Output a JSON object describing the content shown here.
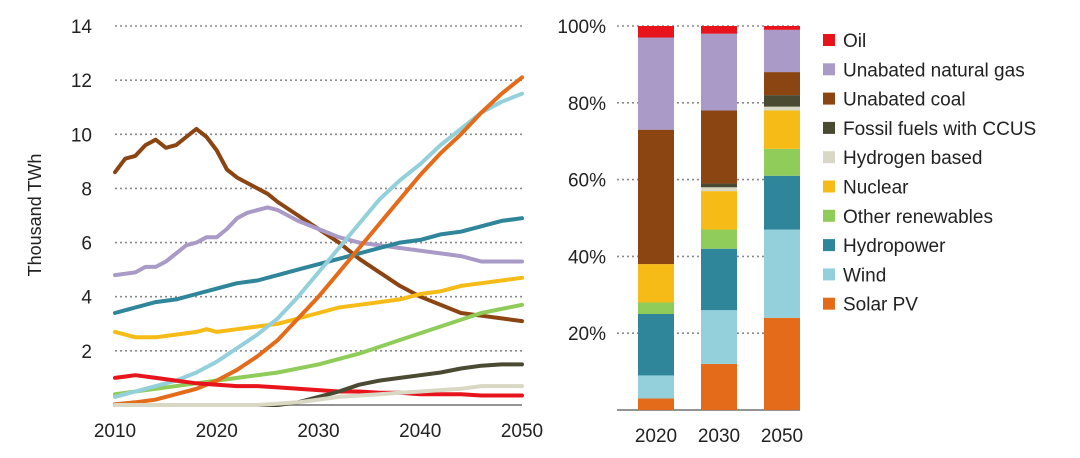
{
  "colors": {
    "oil": "#e8141c",
    "gas": "#a99ac7",
    "coal": "#8b4513",
    "ccus": "#4a4a32",
    "hydrogen": "#d9d8c4",
    "nuclear": "#f7bb17",
    "other": "#8fcc5a",
    "hydro": "#2f8599",
    "wind": "#93d0dc",
    "solar": "#e46b1a"
  },
  "chart_data": [
    {
      "type": "line",
      "ylabel": "Thousand TWh",
      "xlim": [
        2010,
        2050
      ],
      "ylim": [
        0,
        14
      ],
      "x_ticks": [
        "2010",
        "2020",
        "2030",
        "2040",
        "2050"
      ],
      "y_ticks": [
        "2",
        "4",
        "6",
        "8",
        "10",
        "12",
        "14"
      ],
      "grid": "horizontal-dotted",
      "series": [
        {
          "key": "coal",
          "x": [
            2010,
            2011,
            2012,
            2013,
            2014,
            2015,
            2016,
            2017,
            2018,
            2019,
            2020,
            2021,
            2022,
            2023,
            2024,
            2025,
            2026,
            2028,
            2030,
            2032,
            2034,
            2036,
            2038,
            2040,
            2042,
            2044,
            2046,
            2048,
            2050
          ],
          "y": [
            8.6,
            9.1,
            9.2,
            9.6,
            9.8,
            9.5,
            9.6,
            9.9,
            10.2,
            9.9,
            9.4,
            8.7,
            8.4,
            8.2,
            8.0,
            7.8,
            7.5,
            7.0,
            6.5,
            6.0,
            5.4,
            4.9,
            4.4,
            4.0,
            3.7,
            3.4,
            3.3,
            3.2,
            3.1
          ]
        },
        {
          "key": "gas",
          "x": [
            2010,
            2012,
            2013,
            2014,
            2015,
            2016,
            2017,
            2018,
            2019,
            2020,
            2021,
            2022,
            2023,
            2024,
            2025,
            2026,
            2027,
            2028,
            2030,
            2032,
            2034,
            2036,
            2038,
            2040,
            2042,
            2044,
            2046,
            2048,
            2050
          ],
          "y": [
            4.8,
            4.9,
            5.1,
            5.1,
            5.3,
            5.6,
            5.9,
            6.0,
            6.2,
            6.2,
            6.5,
            6.9,
            7.1,
            7.2,
            7.3,
            7.2,
            7.0,
            6.8,
            6.5,
            6.2,
            6.0,
            5.9,
            5.8,
            5.7,
            5.6,
            5.5,
            5.3,
            5.3,
            5.3
          ]
        },
        {
          "key": "hydro",
          "x": [
            2010,
            2012,
            2014,
            2016,
            2018,
            2020,
            2022,
            2024,
            2026,
            2028,
            2030,
            2032,
            2034,
            2036,
            2038,
            2040,
            2042,
            2044,
            2046,
            2048,
            2050
          ],
          "y": [
            3.4,
            3.6,
            3.8,
            3.9,
            4.1,
            4.3,
            4.5,
            4.6,
            4.8,
            5.0,
            5.2,
            5.4,
            5.6,
            5.8,
            6.0,
            6.1,
            6.3,
            6.4,
            6.6,
            6.8,
            6.9
          ]
        },
        {
          "key": "nuclear",
          "x": [
            2010,
            2012,
            2014,
            2016,
            2018,
            2019,
            2020,
            2022,
            2024,
            2026,
            2028,
            2030,
            2032,
            2034,
            2036,
            2038,
            2040,
            2042,
            2044,
            2046,
            2048,
            2050
          ],
          "y": [
            2.7,
            2.5,
            2.5,
            2.6,
            2.7,
            2.8,
            2.7,
            2.8,
            2.9,
            3.0,
            3.2,
            3.4,
            3.6,
            3.7,
            3.8,
            3.9,
            4.1,
            4.2,
            4.4,
            4.5,
            4.6,
            4.7
          ]
        },
        {
          "key": "other",
          "x": [
            2010,
            2014,
            2018,
            2022,
            2026,
            2030,
            2034,
            2038,
            2042,
            2046,
            2050
          ],
          "y": [
            0.4,
            0.6,
            0.8,
            1.0,
            1.2,
            1.5,
            1.9,
            2.4,
            2.9,
            3.4,
            3.7
          ]
        },
        {
          "key": "wind",
          "x": [
            2010,
            2012,
            2014,
            2016,
            2018,
            2020,
            2022,
            2024,
            2026,
            2028,
            2030,
            2032,
            2034,
            2036,
            2038,
            2040,
            2042,
            2044,
            2046,
            2048,
            2050
          ],
          "y": [
            0.3,
            0.5,
            0.7,
            0.9,
            1.2,
            1.6,
            2.1,
            2.6,
            3.2,
            4.0,
            4.9,
            5.8,
            6.7,
            7.6,
            8.3,
            8.9,
            9.6,
            10.2,
            10.8,
            11.2,
            11.5
          ]
        },
        {
          "key": "solar",
          "x": [
            2010,
            2012,
            2014,
            2016,
            2018,
            2020,
            2022,
            2024,
            2026,
            2028,
            2030,
            2032,
            2034,
            2036,
            2038,
            2040,
            2042,
            2044,
            2046,
            2048,
            2050
          ],
          "y": [
            0.03,
            0.1,
            0.2,
            0.4,
            0.6,
            0.9,
            1.3,
            1.8,
            2.4,
            3.2,
            4.0,
            4.9,
            5.8,
            6.7,
            7.6,
            8.5,
            9.3,
            10.0,
            10.8,
            11.5,
            12.1
          ]
        },
        {
          "key": "oil",
          "x": [
            2010,
            2012,
            2014,
            2016,
            2018,
            2020,
            2022,
            2024,
            2026,
            2028,
            2030,
            2032,
            2034,
            2036,
            2038,
            2040,
            2042,
            2044,
            2046,
            2048,
            2050
          ],
          "y": [
            1.0,
            1.1,
            1.0,
            0.9,
            0.8,
            0.75,
            0.7,
            0.7,
            0.65,
            0.6,
            0.55,
            0.5,
            0.5,
            0.45,
            0.45,
            0.4,
            0.4,
            0.4,
            0.35,
            0.35,
            0.35
          ]
        },
        {
          "key": "ccus",
          "x": [
            2010,
            2020,
            2026,
            2028,
            2030,
            2032,
            2034,
            2036,
            2038,
            2040,
            2042,
            2044,
            2046,
            2048,
            2050
          ],
          "y": [
            0,
            0,
            0,
            0.1,
            0.3,
            0.5,
            0.75,
            0.9,
            1.0,
            1.1,
            1.2,
            1.35,
            1.45,
            1.5,
            1.5
          ]
        },
        {
          "key": "hydrogen",
          "x": [
            2010,
            2024,
            2026,
            2028,
            2030,
            2032,
            2034,
            2036,
            2038,
            2040,
            2042,
            2044,
            2046,
            2048,
            2050
          ],
          "y": [
            0,
            0,
            0.05,
            0.1,
            0.2,
            0.3,
            0.35,
            0.4,
            0.45,
            0.5,
            0.55,
            0.6,
            0.7,
            0.7,
            0.7
          ]
        }
      ]
    },
    {
      "type": "bar",
      "stacked": true,
      "categories": [
        "2020",
        "2030",
        "2050"
      ],
      "y_ticks": [
        "20%",
        "40%",
        "60%",
        "80%",
        "100%"
      ],
      "ylim": [
        0,
        100
      ],
      "grid": "horizontal-dotted",
      "series": [
        {
          "key": "solar",
          "name": "Solar PV",
          "values": [
            3,
            12,
            24
          ]
        },
        {
          "key": "wind",
          "name": "Wind",
          "values": [
            6,
            14,
            23
          ]
        },
        {
          "key": "hydro",
          "name": "Hydropower",
          "values": [
            16,
            16,
            14
          ]
        },
        {
          "key": "other",
          "name": "Other renewables",
          "values": [
            3,
            5,
            7
          ]
        },
        {
          "key": "nuclear",
          "name": "Nuclear",
          "values": [
            10,
            10,
            10
          ]
        },
        {
          "key": "hydrogen",
          "name": "Hydrogen based",
          "values": [
            0,
            1,
            1
          ]
        },
        {
          "key": "ccus",
          "name": "Fossil fuels with CCUS",
          "values": [
            0,
            1,
            3
          ]
        },
        {
          "key": "coal",
          "name": "Unabated coal",
          "values": [
            35,
            19,
            6
          ]
        },
        {
          "key": "gas",
          "name": "Unabated natural gas",
          "values": [
            24,
            20,
            11
          ]
        },
        {
          "key": "oil",
          "name": "Oil",
          "values": [
            3,
            2,
            1
          ]
        }
      ]
    }
  ],
  "legend": [
    {
      "key": "oil",
      "label": "Oil"
    },
    {
      "key": "gas",
      "label": "Unabated natural gas"
    },
    {
      "key": "coal",
      "label": "Unabated coal"
    },
    {
      "key": "ccus",
      "label": "Fossil fuels with CCUS"
    },
    {
      "key": "hydrogen",
      "label": "Hydrogen based"
    },
    {
      "key": "nuclear",
      "label": "Nuclear"
    },
    {
      "key": "other",
      "label": "Other renewables"
    },
    {
      "key": "hydro",
      "label": "Hydropower"
    },
    {
      "key": "wind",
      "label": "Wind"
    },
    {
      "key": "solar",
      "label": "Solar PV"
    }
  ]
}
